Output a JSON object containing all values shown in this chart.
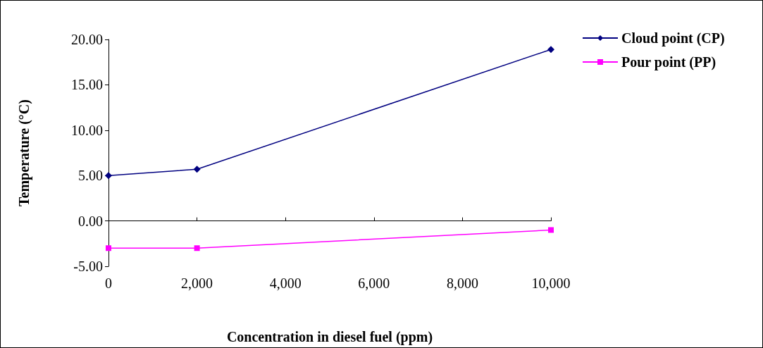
{
  "chart_data": {
    "type": "line",
    "xlabel": "Concentration in diesel fuel (ppm)",
    "ylabel": "Temperature (°C)",
    "x": [
      0,
      2000,
      10000
    ],
    "series": [
      {
        "name": "Cloud point (CP)",
        "color": "#000080",
        "marker": "diamond",
        "values": [
          5.0,
          5.7,
          18.9
        ]
      },
      {
        "name": "Pour point (PP)",
        "color": "#ff00ff",
        "marker": "square",
        "values": [
          -3.0,
          -3.0,
          -1.0
        ]
      }
    ],
    "xlim": [
      0,
      10000
    ],
    "xticks": [
      {
        "value": 0,
        "label": "0"
      },
      {
        "value": 2000,
        "label": "2,000"
      },
      {
        "value": 4000,
        "label": "4,000"
      },
      {
        "value": 6000,
        "label": "6,000"
      },
      {
        "value": 8000,
        "label": "8,000"
      },
      {
        "value": 10000,
        "label": "10,000"
      }
    ],
    "ylim": [
      -5,
      20
    ],
    "yticks": [
      {
        "value": -5,
        "label": "-5.00"
      },
      {
        "value": 0,
        "label": "0.00"
      },
      {
        "value": 5,
        "label": "5.00"
      },
      {
        "value": 10,
        "label": "10.00"
      },
      {
        "value": 15,
        "label": "15.00"
      },
      {
        "value": 20,
        "label": "20.00"
      }
    ],
    "legend": "top right",
    "line_style": "solid"
  }
}
